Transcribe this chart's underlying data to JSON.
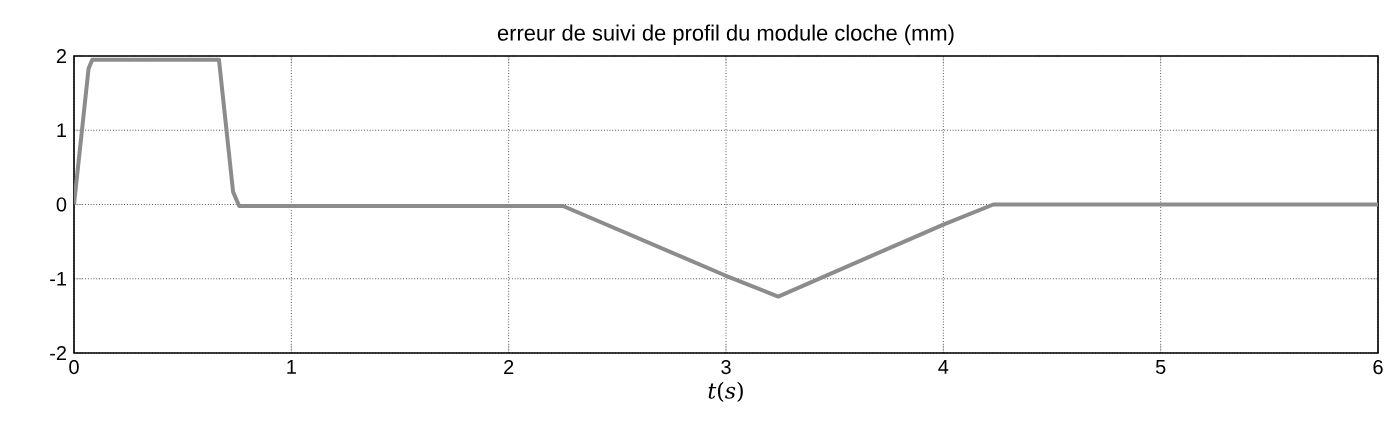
{
  "chart_data": {
    "type": "line",
    "title": "erreur de suivi de profil du module cloche (mm)",
    "xlabel": "*t*(*s*)",
    "x": [
      0,
      0.067,
      0.084,
      0.667,
      0.732,
      0.76,
      2.25,
      3.0,
      3.24,
      4.0,
      4.23,
      6.0
    ],
    "series": [
      {
        "color": "#8c8c8c",
        "values": [
          0,
          1.83,
          1.95,
          1.95,
          0.17,
          -0.02,
          -0.02,
          -0.96,
          -1.24,
          -0.27,
          0,
          0
        ]
      }
    ],
    "xlim": [
      0,
      6
    ],
    "ylim": [
      -2,
      2
    ],
    "xticks": [
      0,
      1,
      2,
      3,
      4,
      5,
      6
    ],
    "yticks": [
      -2,
      -1,
      0,
      1,
      2
    ],
    "grid": true,
    "marker": "none",
    "line_style": "solid"
  }
}
